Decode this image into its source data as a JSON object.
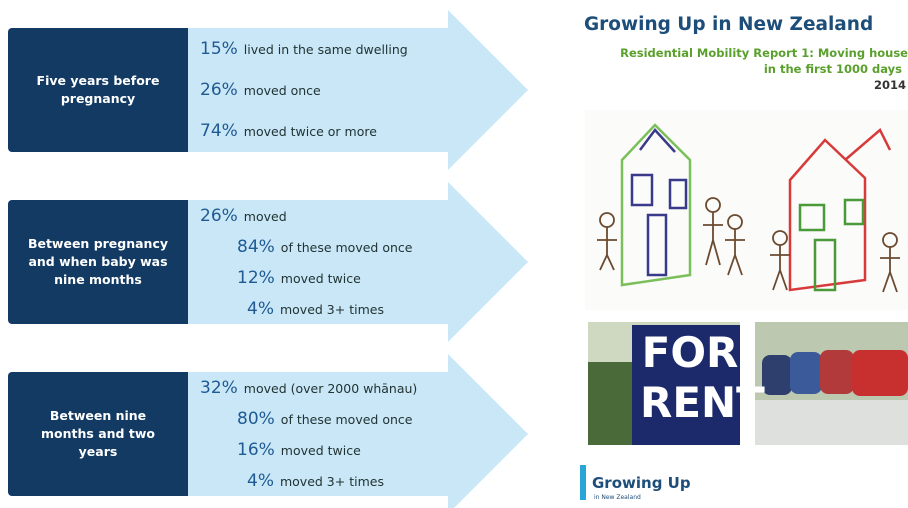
{
  "panels": [
    {
      "label": "Five years before pregnancy",
      "stats": [
        {
          "pct": "15%",
          "text": "lived in the same dwelling"
        },
        {
          "pct": "26%",
          "text": "moved once"
        },
        {
          "pct": "74%",
          "text": "moved twice or more"
        }
      ]
    },
    {
      "label": "Between pregnancy and when baby was nine months",
      "stats": [
        {
          "pct": "26%",
          "text": "moved"
        },
        {
          "pct": "84%",
          "text": "of these moved once"
        },
        {
          "pct": "12%",
          "text": "moved twice"
        },
        {
          "pct": "4%",
          "text": "moved 3+ times"
        }
      ]
    },
    {
      "label": "Between nine months and two years",
      "stats": [
        {
          "pct": "32%",
          "text": "moved (over 2000 whānau)"
        },
        {
          "pct": "80%",
          "text": "of these moved once"
        },
        {
          "pct": "16%",
          "text": "moved twice"
        },
        {
          "pct": "4%",
          "text": "moved 3+ times"
        }
      ]
    }
  ],
  "cover": {
    "title": "Growing Up in New Zealand",
    "subtitle_lines": [
      "Residential Mobility Report 1: Moving house",
      "in the first 1000 days"
    ],
    "year": "2014",
    "sign_lines": [
      "FOR",
      "RENT"
    ],
    "logo": "Growing Up",
    "logo_sub": "in New Zealand"
  }
}
